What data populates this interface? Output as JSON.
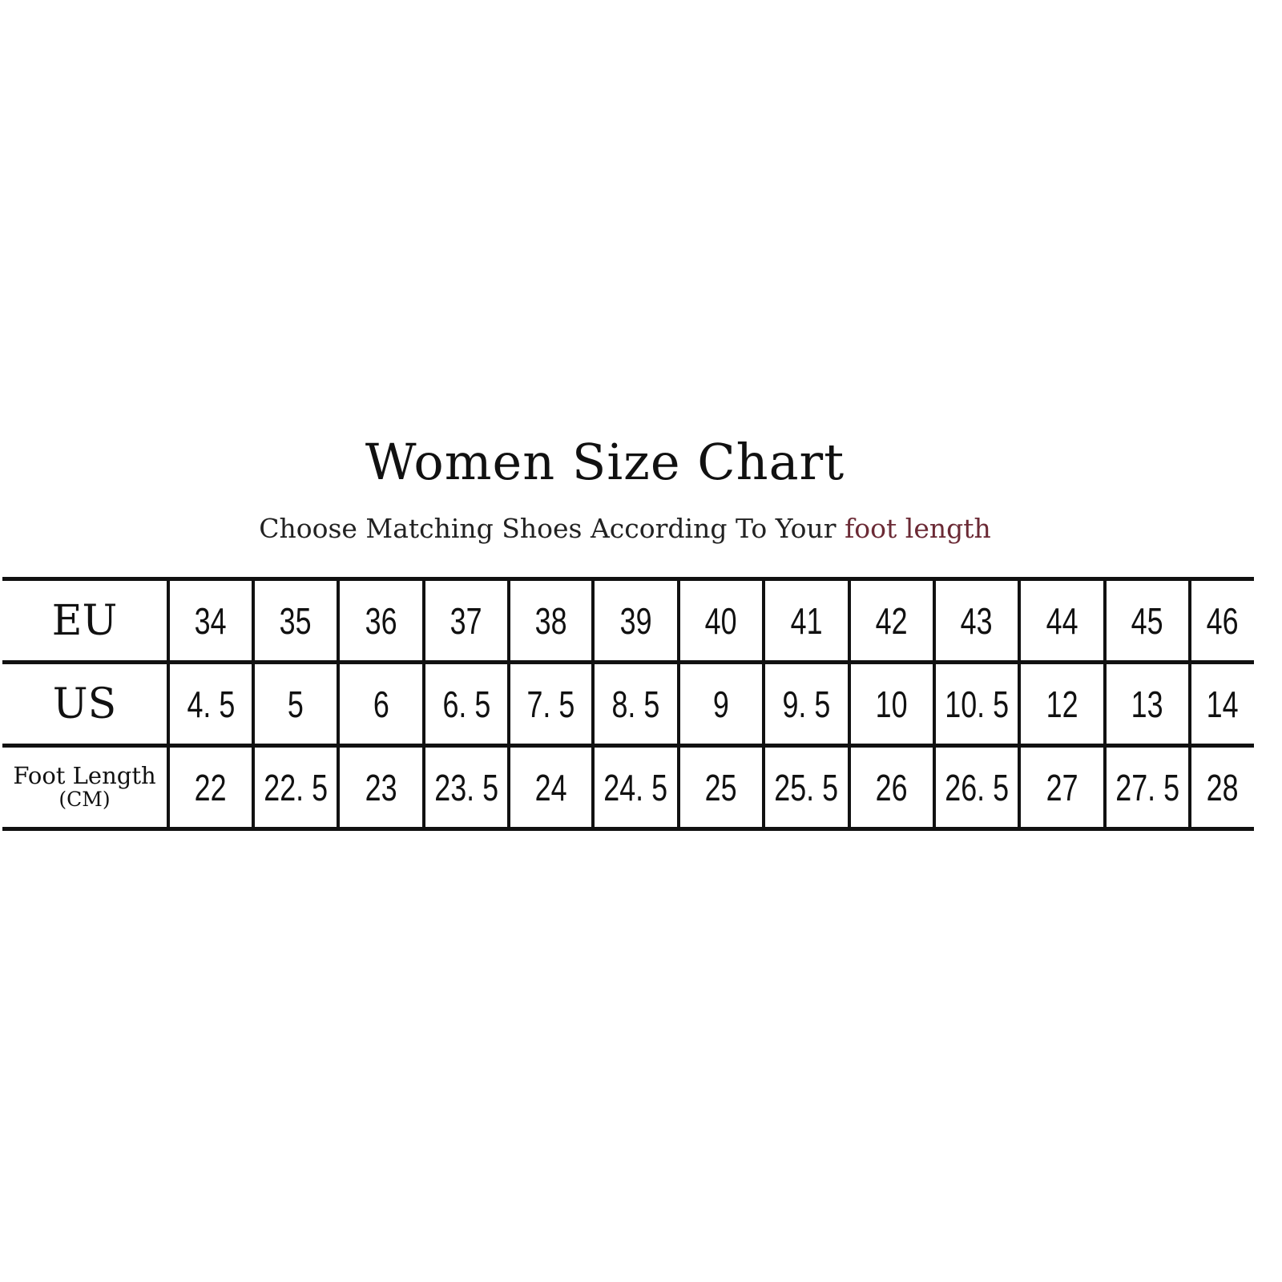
{
  "title": "Women Size Chart",
  "subtitle": {
    "text": "Choose Matching Shoes According To Your ",
    "highlight": "foot length"
  },
  "colors": {
    "text": "#111111",
    "highlight": "#6b2a35",
    "background": "#ffffff"
  },
  "chart_data": {
    "type": "table",
    "title": "Women Size Chart",
    "rows": [
      {
        "label": "EU",
        "unit": "",
        "values": [
          "34",
          "35",
          "36",
          "37",
          "38",
          "39",
          "40",
          "41",
          "42",
          "43",
          "44",
          "45",
          "46"
        ]
      },
      {
        "label": "US",
        "unit": "",
        "values": [
          "4. 5",
          "5",
          "6",
          "6. 5",
          "7. 5",
          "8. 5",
          "9",
          "9. 5",
          "10",
          "10. 5",
          "12",
          "13",
          "14"
        ]
      },
      {
        "label": "Foot Length",
        "unit": "(CM)",
        "values": [
          "22",
          "22. 5",
          "23",
          "23. 5",
          "24",
          "24. 5",
          "25",
          "25. 5",
          "26",
          "26. 5",
          "27",
          "27. 5",
          "28"
        ]
      }
    ]
  }
}
